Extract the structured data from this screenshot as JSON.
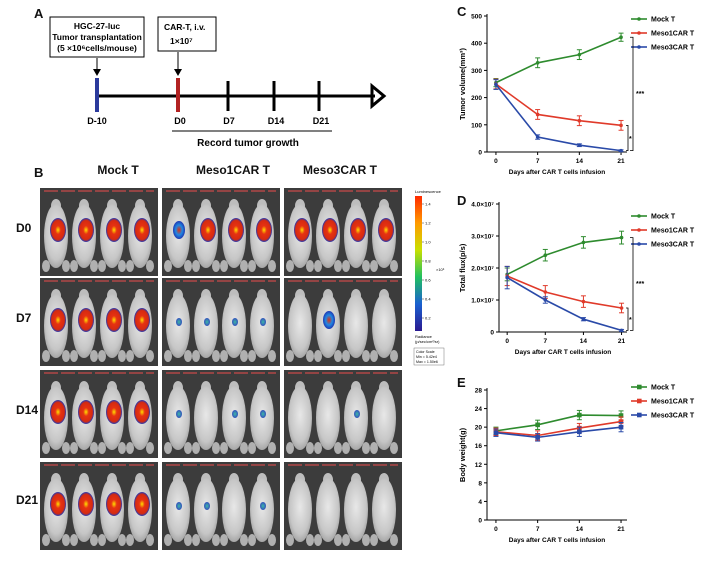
{
  "panels": {
    "a": "A",
    "b": "B",
    "c": "C",
    "d": "D",
    "e": "E"
  },
  "timeline": {
    "box1_lines": [
      "HGC-27-luc",
      "Tumor transplantation",
      "(5 ×10⁶cells/mouse)"
    ],
    "box2_lines": [
      "CAR-T, i.v.",
      "1×10⁷"
    ],
    "days": [
      "D-10",
      "D0",
      "D7",
      "D14",
      "D21"
    ],
    "record_label": "Record tumor growth",
    "colors": {
      "start": "#2b3a9c",
      "infusion": "#b22222",
      "axis": "#000000"
    }
  },
  "imaging": {
    "columns": [
      "Mock T",
      "Meso1CAR T",
      "Meso3CAR T"
    ],
    "rows": [
      "D0",
      "D7",
      "D14",
      "D21"
    ],
    "colorbar": {
      "title": "Luminescence",
      "exp_label": "×10⁶",
      "ticks": [
        "1.4",
        "1.2",
        "1.0",
        "0.8",
        "0.6",
        "0.4",
        "0.2"
      ],
      "units": [
        "Radiance",
        "(p/sec/cm²/sr)"
      ],
      "scale_lines": [
        "Color Scale",
        "Min = 5.42e4",
        "Max = 1.50e6"
      ]
    }
  },
  "chart_data": [
    {
      "id": "C",
      "type": "line",
      "x": [
        0,
        7,
        14,
        21
      ],
      "series": [
        {
          "name": "Mock T",
          "color": "#2e8b2e",
          "values": [
            255,
            328,
            358,
            422
          ],
          "errors": [
            15,
            18,
            18,
            15
          ]
        },
        {
          "name": "Meso1CAR T",
          "color": "#e03a2a",
          "values": [
            250,
            138,
            115,
            98
          ],
          "errors": [
            18,
            18,
            18,
            18
          ]
        },
        {
          "name": "Meso3CAR T",
          "color": "#2a4aa8",
          "values": [
            248,
            55,
            25,
            5
          ],
          "errors": [
            18,
            8,
            5,
            3
          ]
        }
      ],
      "ylabel": "Tumor volume(mm³)",
      "xlabel": "Days after CAR T cells  infusion",
      "ylim": [
        0,
        500
      ],
      "yticks": [
        0,
        100,
        200,
        300,
        400,
        500
      ],
      "ytick_labels": [
        "0",
        "100",
        "200",
        "300",
        "400",
        "500"
      ],
      "xtick_labels": [
        "0",
        "7",
        "14",
        "21"
      ],
      "sig_labels": [
        "***",
        "*"
      ],
      "legend": "top-right"
    },
    {
      "id": "D",
      "type": "line",
      "x": [
        0,
        7,
        14,
        21
      ],
      "series": [
        {
          "name": "Mock T",
          "color": "#2e8b2e",
          "values": [
            1.8,
            2.4,
            2.8,
            2.95
          ],
          "errors": [
            0.2,
            0.18,
            0.18,
            0.2
          ]
        },
        {
          "name": "Meso1CAR T",
          "color": "#e03a2a",
          "values": [
            1.75,
            1.25,
            0.95,
            0.75
          ],
          "errors": [
            0.3,
            0.2,
            0.18,
            0.15
          ]
        },
        {
          "name": "Meso3CAR T",
          "color": "#2a4aa8",
          "values": [
            1.7,
            1.0,
            0.4,
            0.05
          ],
          "errors": [
            0.35,
            0.1,
            0.05,
            0.03
          ]
        }
      ],
      "ylabel": "Total flux(p/s)",
      "xlabel": "Days after CAR T cells  infusion",
      "ylim": [
        0,
        4.0
      ],
      "yticks": [
        0,
        1,
        2,
        3,
        4
      ],
      "ytick_labels": [
        "0",
        "1.0×10⁷",
        "2.0×10⁷",
        "3.0×10⁷",
        "4.0×10⁷"
      ],
      "xtick_labels": [
        "0",
        "7",
        "14",
        "21"
      ],
      "sig_labels": [
        "***",
        "*"
      ],
      "legend": "top-right"
    },
    {
      "id": "E",
      "type": "line",
      "x": [
        0,
        7,
        14,
        21
      ],
      "series": [
        {
          "name": "Mock T",
          "color": "#2e8b2e",
          "values": [
            19.2,
            20.5,
            22.6,
            22.5
          ],
          "errors": [
            0.8,
            1.0,
            1.0,
            1.0
          ]
        },
        {
          "name": "Meso1CAR T",
          "color": "#e03a2a",
          "values": [
            19.0,
            18.2,
            19.8,
            21.2
          ],
          "errors": [
            0.8,
            1.0,
            1.0,
            1.0
          ]
        },
        {
          "name": "Meso3CAR T",
          "color": "#2a4aa8",
          "values": [
            18.8,
            17.8,
            19.0,
            20.0
          ],
          "errors": [
            0.8,
            0.8,
            1.0,
            1.0
          ]
        }
      ],
      "ylabel": "Body weight(g)",
      "xlabel": "Days after CAR T cells  infusion",
      "ylim": [
        0,
        28
      ],
      "yticks": [
        0,
        4,
        8,
        12,
        16,
        20,
        24,
        28
      ],
      "ytick_labels": [
        "0",
        "4",
        "8",
        "12",
        "16",
        "20",
        "24",
        "28"
      ],
      "xtick_labels": [
        "0",
        "7",
        "14",
        "21"
      ],
      "sig_labels": [],
      "legend": "top-right"
    }
  ]
}
